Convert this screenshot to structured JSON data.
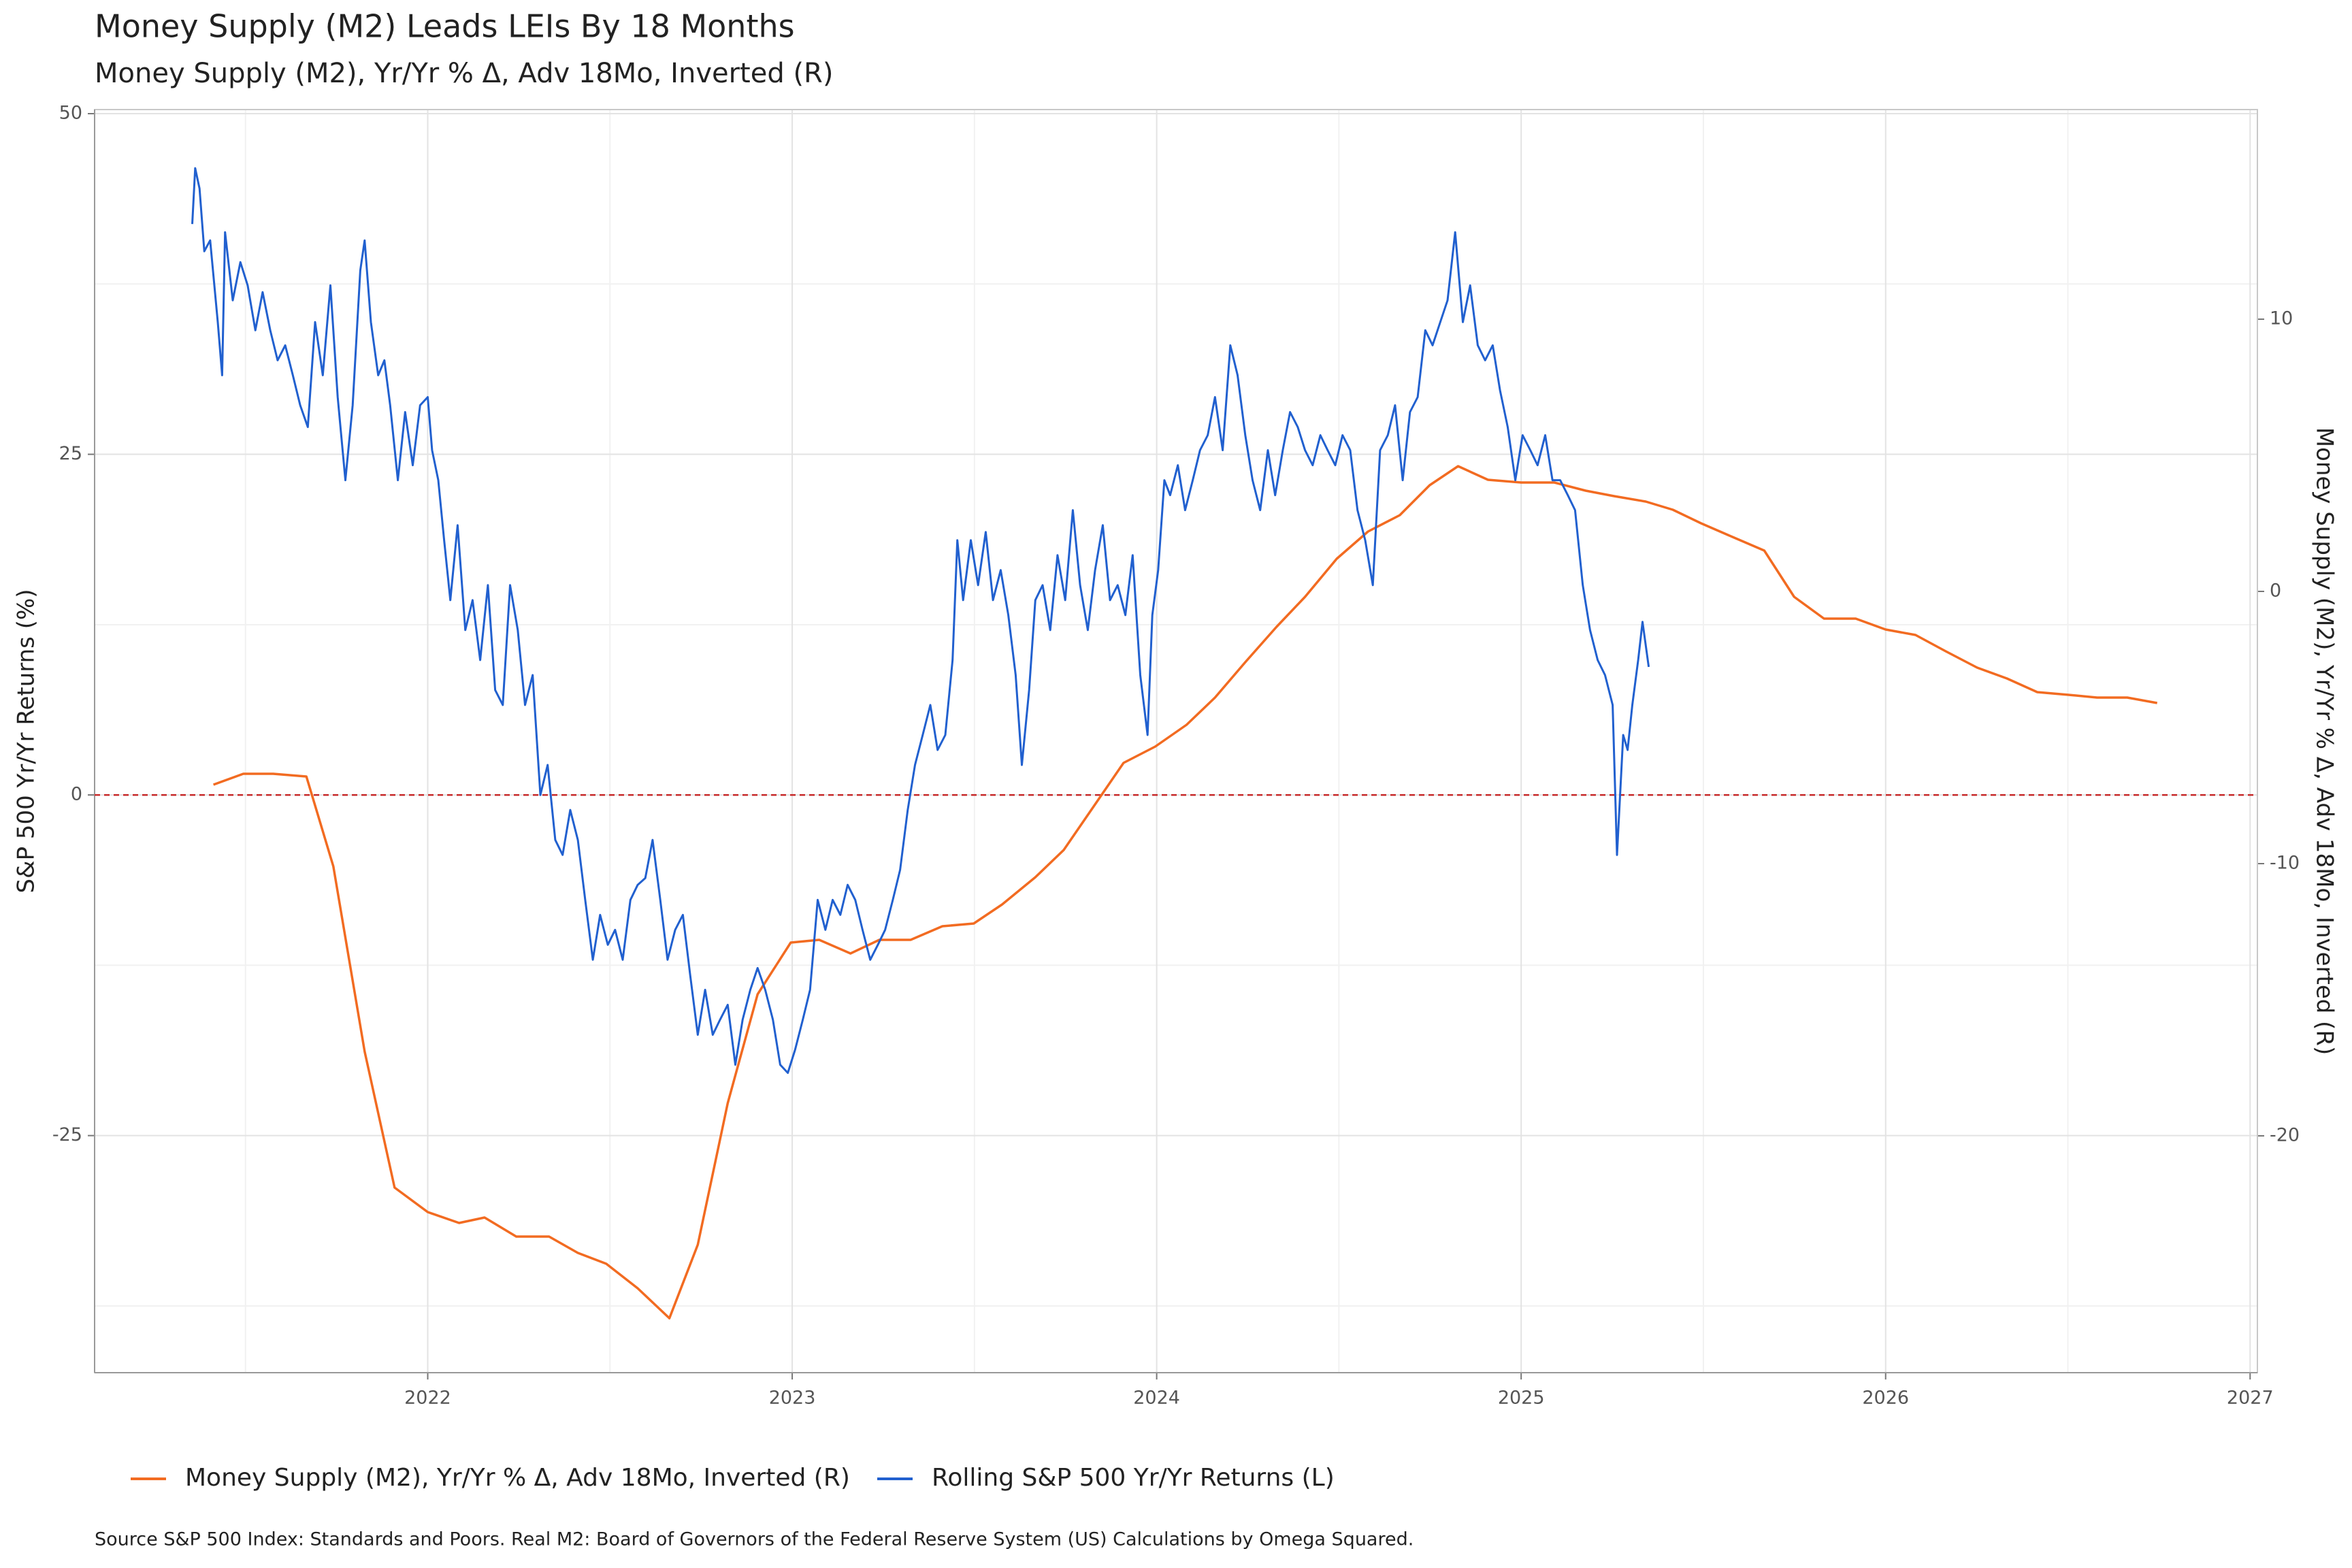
{
  "chart_data": {
    "type": "line",
    "title": "Money Supply (M2)  Leads LEIs By  18  Months",
    "subtitle": "Money Supply (M2), Yr/Yr % Δ, Adv 18Mo, Inverted (R)",
    "ylabel": "S&P 500 Yr/Yr Returns (%)",
    "y2label": "Money Supply (M2), Yr/Yr % Δ, Adv 18Mo, Inverted (R)",
    "caption": "Source S&P 500 Index: Standards and Poors. Real M2:  Board of Governors of the Federal Reserve System (US) Calculations by Omega Squared.",
    "xlim": [
      2021.086,
      2027.02
    ],
    "xticks": [
      2022,
      2023,
      2024,
      2025,
      2026,
      2027
    ],
    "ylim": [
      -42.4,
      50.3
    ],
    "yticks": [
      -25,
      0,
      25,
      50
    ],
    "y2lim": [
      -28.7,
      17.7
    ],
    "y2ticks": [
      -20,
      -10,
      0,
      10
    ],
    "grid": true,
    "minor_grid": true,
    "legend": "bottom",
    "reference_line": {
      "value": 0,
      "color": "#c62828",
      "style": "dashed"
    },
    "series": [
      {
        "name": "Money Supply (M2), Yr/Yr % Δ, Adv 18Mo, Inverted (R)",
        "color": "#f26b21",
        "axis": "y2",
        "x": [
          2021.412,
          2021.494,
          2021.576,
          2021.667,
          2021.741,
          2021.827,
          2021.909,
          2022.0,
          2022.086,
          2022.156,
          2022.243,
          2022.333,
          2022.412,
          2022.49,
          2022.576,
          2022.663,
          2022.741,
          2022.823,
          2022.905,
          2022.996,
          2023.074,
          2023.16,
          2023.239,
          2023.325,
          2023.412,
          2023.498,
          2023.576,
          2023.667,
          2023.745,
          2023.827,
          2023.909,
          2023.996,
          2024.082,
          2024.16,
          2024.243,
          2024.329,
          2024.407,
          2024.494,
          2024.58,
          2024.667,
          2024.749,
          2024.827,
          2024.909,
          2025.0,
          2025.091,
          2025.177,
          2025.255,
          2025.342,
          2025.416,
          2025.494,
          2025.58,
          2025.667,
          2025.749,
          2025.831,
          2025.918,
          2026.0,
          2026.082,
          2026.165,
          2026.251,
          2026.333,
          2026.416,
          2026.502,
          2026.58,
          2026.663,
          2026.745
        ],
        "values": [
          -7.1,
          -6.7,
          -6.7,
          -6.8,
          -10.1,
          -16.9,
          -21.9,
          -22.8,
          -23.2,
          -23.0,
          -23.7,
          -23.7,
          -24.3,
          -24.7,
          -25.6,
          -26.7,
          -24.0,
          -18.8,
          -14.8,
          -12.9,
          -12.8,
          -13.3,
          -12.8,
          -12.8,
          -12.3,
          -12.2,
          -11.5,
          -10.5,
          -9.5,
          -7.9,
          -6.3,
          -5.7,
          -4.9,
          -3.9,
          -2.6,
          -1.3,
          -0.2,
          1.2,
          2.2,
          2.8,
          3.9,
          4.6,
          4.1,
          4.0,
          4.0,
          3.7,
          3.5,
          3.3,
          3.0,
          2.5,
          2.0,
          1.5,
          -0.2,
          -1.0,
          -1.0,
          -1.4,
          -1.6,
          -2.2,
          -2.8,
          -3.2,
          -3.7,
          -3.8,
          -3.9,
          -3.9,
          -4.1
        ]
      },
      {
        "name": "Rolling S&P 500 Yr/Yr Returns (L)",
        "color": "#2160cf",
        "axis": "y",
        "x": [
          2021.354,
          2021.362,
          2021.374,
          2021.387,
          2021.403,
          2021.424,
          2021.436,
          2021.444,
          2021.465,
          2021.486,
          2021.506,
          2021.527,
          2021.547,
          2021.568,
          2021.588,
          2021.609,
          2021.63,
          2021.65,
          2021.671,
          2021.691,
          2021.712,
          2021.733,
          2021.753,
          2021.774,
          2021.794,
          2021.815,
          2021.827,
          2021.844,
          2021.864,
          2021.881,
          2021.897,
          2021.918,
          2021.938,
          2021.959,
          2021.979,
          2022.0,
          2022.012,
          2022.029,
          2022.045,
          2022.062,
          2022.082,
          2022.103,
          2022.123,
          2022.144,
          2022.165,
          2022.185,
          2022.206,
          2022.226,
          2022.247,
          2022.267,
          2022.288,
          2022.309,
          2022.329,
          2022.35,
          2022.37,
          2022.391,
          2022.412,
          2022.432,
          2022.453,
          2022.473,
          2022.494,
          2022.514,
          2022.535,
          2022.556,
          2022.576,
          2022.597,
          2022.617,
          2022.638,
          2022.658,
          2022.679,
          2022.7,
          2022.72,
          2022.741,
          2022.761,
          2022.782,
          2022.802,
          2022.823,
          2022.844,
          2022.864,
          2022.885,
          2022.905,
          2022.926,
          2022.947,
          2022.967,
          2022.988,
          2023.008,
          2023.029,
          2023.049,
          2023.07,
          2023.091,
          2023.111,
          2023.132,
          2023.152,
          2023.173,
          2023.193,
          2023.214,
          2023.235,
          2023.255,
          2023.276,
          2023.296,
          2023.317,
          2023.337,
          2023.358,
          2023.379,
          2023.399,
          2023.42,
          2023.44,
          2023.453,
          2023.469,
          2023.49,
          2023.51,
          2023.531,
          2023.551,
          2023.572,
          2023.593,
          2023.613,
          2023.63,
          2023.65,
          2023.667,
          2023.687,
          2023.708,
          2023.728,
          2023.749,
          2023.77,
          2023.79,
          2023.811,
          2023.831,
          2023.852,
          2023.872,
          2023.893,
          2023.914,
          2023.934,
          2023.955,
          2023.975,
          2023.988,
          2024.004,
          2024.021,
          2024.037,
          2024.058,
          2024.078,
          2024.099,
          2024.119,
          2024.14,
          2024.16,
          2024.181,
          2024.202,
          2024.222,
          2024.243,
          2024.263,
          2024.284,
          2024.305,
          2024.325,
          2024.346,
          2024.366,
          2024.387,
          2024.407,
          2024.428,
          2024.449,
          2024.469,
          2024.49,
          2024.51,
          2024.531,
          2024.551,
          2024.572,
          2024.593,
          2024.613,
          2024.634,
          2024.654,
          2024.675,
          2024.695,
          2024.716,
          2024.737,
          2024.757,
          2024.778,
          2024.798,
          2024.819,
          2024.84,
          2024.86,
          2024.881,
          2024.901,
          2024.922,
          2024.942,
          2024.963,
          2024.984,
          2025.004,
          2025.025,
          2025.045,
          2025.066,
          2025.086,
          2025.107,
          2025.128,
          2025.148,
          2025.169,
          2025.189,
          2025.21,
          2025.23,
          2025.251,
          2025.263,
          2025.28,
          2025.292,
          2025.305,
          2025.321,
          2025.333,
          2025.35
        ],
        "values": [
          41.9,
          46.0,
          44.5,
          39.9,
          40.7,
          34.7,
          30.8,
          41.3,
          36.3,
          39.1,
          37.4,
          34.1,
          36.9,
          34.1,
          31.9,
          33.0,
          30.8,
          28.6,
          27.0,
          34.7,
          30.8,
          37.4,
          29.2,
          23.1,
          28.6,
          38.5,
          40.7,
          34.7,
          30.8,
          31.9,
          28.6,
          23.1,
          28.1,
          24.2,
          28.6,
          29.2,
          25.3,
          23.1,
          18.7,
          14.3,
          19.8,
          12.1,
          14.3,
          9.9,
          15.4,
          7.7,
          6.6,
          15.4,
          12.1,
          6.6,
          8.8,
          0,
          2.2,
          -3.3,
          -4.4,
          -1.1,
          -3.3,
          -7.7,
          -12.1,
          -8.8,
          -11.0,
          -9.9,
          -12.1,
          -7.7,
          -6.6,
          -6.1,
          -3.3,
          -7.7,
          -12.1,
          -9.9,
          -8.8,
          -13.2,
          -17.6,
          -14.3,
          -17.6,
          -16.5,
          -15.4,
          -19.8,
          -16.5,
          -14.3,
          -12.7,
          -14.3,
          -16.5,
          -19.8,
          -20.4,
          -18.7,
          -16.5,
          -14.3,
          -7.7,
          -9.9,
          -7.7,
          -8.8,
          -6.6,
          -7.7,
          -9.9,
          -12.1,
          -11.0,
          -9.9,
          -7.7,
          -5.5,
          -1.1,
          2.2,
          4.4,
          6.6,
          3.3,
          4.4,
          9.9,
          18.7,
          14.3,
          18.7,
          15.4,
          19.3,
          14.3,
          16.5,
          13.2,
          8.8,
          2.2,
          7.7,
          14.3,
          15.4,
          12.1,
          17.6,
          14.3,
          20.9,
          15.4,
          12.1,
          16.5,
          19.8,
          14.3,
          15.4,
          13.2,
          17.6,
          8.8,
          4.4,
          13.2,
          16.5,
          23.1,
          22.0,
          24.2,
          20.9,
          23.1,
          25.3,
          26.4,
          29.2,
          25.3,
          33.0,
          30.8,
          26.4,
          23.1,
          20.9,
          25.3,
          22.0,
          25.3,
          28.1,
          27.0,
          25.3,
          24.2,
          26.4,
          25.3,
          24.2,
          26.4,
          25.3,
          20.9,
          18.7,
          15.4,
          25.3,
          26.4,
          28.6,
          23.1,
          28.1,
          29.2,
          34.1,
          33.0,
          34.7,
          36.3,
          41.3,
          34.7,
          37.4,
          33.0,
          31.9,
          33.0,
          29.7,
          27.0,
          23.1,
          26.4,
          25.3,
          24.2,
          26.4,
          23.1,
          23.1,
          22.0,
          20.9,
          15.4,
          12.1,
          9.9,
          8.8,
          6.6,
          -4.4,
          4.4,
          3.3,
          6.6,
          9.9,
          12.7,
          9.4
        ]
      }
    ]
  }
}
